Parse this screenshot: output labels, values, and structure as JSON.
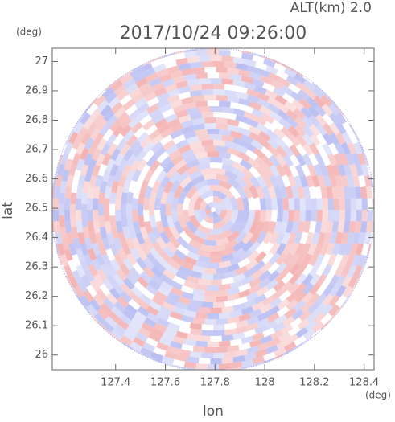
{
  "chart_data": {
    "type": "radar-ppi",
    "title": "2017/10/24 09:26:00",
    "altitude_label": "ALT(km) 2.0",
    "y_unit": "(deg)",
    "x_unit": "(deg)",
    "xlabel": "lon",
    "ylabel": "lat",
    "xlim": [
      127.145,
      128.44
    ],
    "xticks": [
      127.4,
      127.6,
      127.8,
      128.0,
      128.2,
      128.4
    ],
    "ylim": [
      25.95,
      27.045
    ],
    "yticks": [
      26.0,
      26.1,
      26.2,
      26.3,
      26.4,
      26.5,
      26.6,
      26.7,
      26.8,
      26.9,
      27.0
    ]
  }
}
